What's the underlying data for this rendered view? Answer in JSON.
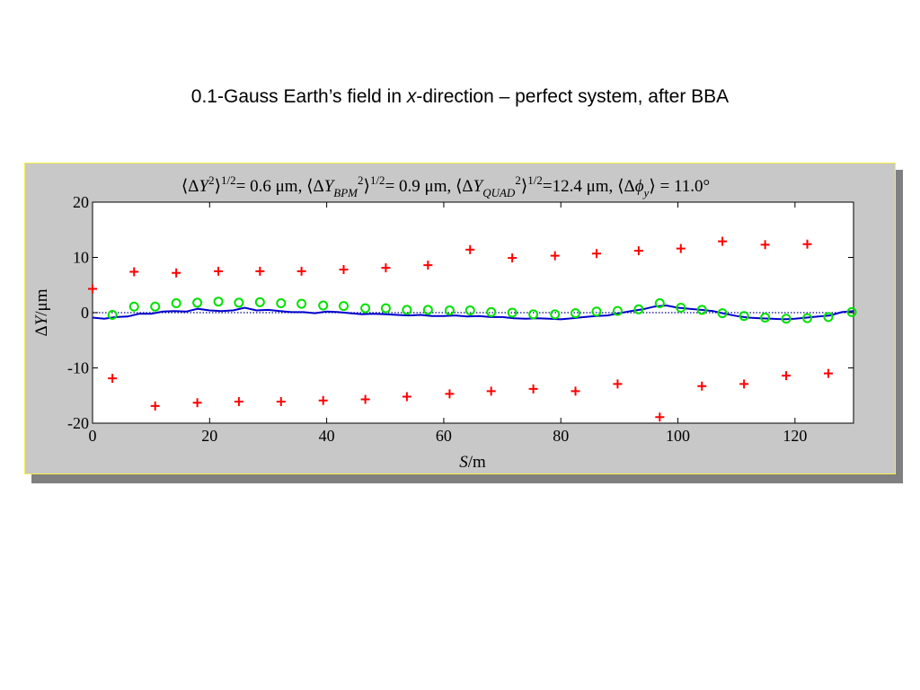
{
  "slide": {
    "title_before": "0.1-Gauss Earth’s field in ",
    "title_var": "x",
    "title_after": "-direction – perfect system, after BBA"
  },
  "colors": {
    "plus": "#ff0000",
    "circle": "#00e000",
    "line": "#0000cc",
    "zero_line": "#000088",
    "panel": "#c8c8c8",
    "border": "#f5f046"
  },
  "chart_data": {
    "type": "scatter",
    "title_parts": {
      "y_rms": "= 0.6 μm, ",
      "ybpm_rms": "= 0.9 μm, ",
      "yquad_rms": "=12.4 μm, ",
      "phi": " =   11.0°"
    },
    "xlabel": "S/m",
    "ylabel": "ΔY/μm",
    "xlim": [
      0,
      130
    ],
    "ylim": [
      -20,
      20
    ],
    "x_ticks": [
      0,
      20,
      40,
      60,
      80,
      100,
      120
    ],
    "y_ticks": [
      -20,
      -10,
      0,
      10,
      20
    ],
    "x_tick_labels": [
      "0",
      "20",
      "40",
      "60",
      "80",
      "100",
      "120"
    ],
    "y_tick_labels": [
      "-20",
      "-10",
      "0",
      "10",
      "20"
    ],
    "zero_line": true,
    "series": [
      {
        "marker": "plus",
        "x": [
          0,
          3.4,
          7.1,
          10.7,
          14.3,
          17.9,
          21.5,
          25.0,
          28.6,
          32.2,
          35.7,
          39.4,
          42.9,
          46.6,
          50.1,
          53.7,
          57.3,
          61.0,
          64.5,
          68.1,
          71.7,
          75.3,
          79.0,
          82.5,
          86.1,
          89.7,
          93.3,
          96.9,
          100.5,
          104.1,
          107.6,
          111.3,
          114.9,
          118.5,
          122.1,
          125.7
        ],
        "y": [
          4.3,
          -11.9,
          7.4,
          -16.9,
          7.2,
          -16.3,
          7.5,
          -16.1,
          7.5,
          -16.1,
          7.5,
          -15.9,
          7.8,
          -15.7,
          8.1,
          -15.2,
          8.6,
          -14.7,
          11.4,
          -14.2,
          9.9,
          -13.8,
          10.3,
          -14.2,
          10.7,
          -12.9,
          11.2,
          -18.9,
          11.6,
          -13.3,
          12.9,
          -12.9,
          12.3,
          -11.4,
          12.4,
          -11.0
        ]
      },
      {
        "marker": "circle",
        "x": [
          3.4,
          7.1,
          10.7,
          14.3,
          17.9,
          21.5,
          25.0,
          28.6,
          32.2,
          35.7,
          39.4,
          42.9,
          46.6,
          50.1,
          53.7,
          57.3,
          61.0,
          64.5,
          68.1,
          71.7,
          75.3,
          79.0,
          82.5,
          86.1,
          89.7,
          93.3,
          96.9,
          100.5,
          104.1,
          107.6,
          111.3,
          114.9,
          118.5,
          122.1,
          125.7,
          129.7
        ],
        "y": [
          -0.4,
          1.1,
          1.1,
          1.7,
          1.8,
          2.0,
          1.8,
          1.9,
          1.7,
          1.6,
          1.3,
          1.2,
          0.8,
          0.8,
          0.5,
          0.5,
          0.4,
          0.4,
          0.1,
          0.0,
          -0.3,
          -0.3,
          -0.1,
          0.2,
          0.3,
          0.6,
          1.7,
          0.9,
          0.5,
          -0.1,
          -0.6,
          -0.9,
          -1.1,
          -1.0,
          -0.8,
          0.1
        ]
      },
      {
        "marker": "line",
        "x": [
          0,
          2,
          4,
          6,
          8,
          10,
          12,
          14,
          16,
          18,
          20,
          22,
          24,
          26,
          28,
          30,
          32,
          34,
          36,
          38,
          40,
          42,
          44,
          46,
          48,
          50,
          52,
          54,
          56,
          58,
          60,
          62,
          64,
          66,
          68,
          70,
          72,
          74,
          76,
          78,
          80,
          82,
          84,
          86,
          88,
          90,
          92,
          94,
          96,
          98,
          100,
          102,
          104,
          106,
          108,
          110,
          112,
          114,
          116,
          118,
          120,
          122,
          124,
          126,
          128,
          130
        ],
        "y": [
          -0.9,
          -1.1,
          -0.8,
          -0.7,
          -0.2,
          -0.2,
          0.2,
          0.3,
          0.2,
          0.7,
          0.4,
          0.3,
          0.4,
          0.9,
          0.4,
          0.5,
          0.3,
          0.1,
          0.1,
          -0.1,
          0.2,
          0.1,
          -0.1,
          -0.3,
          -0.2,
          -0.3,
          -0.4,
          -0.5,
          -0.4,
          -0.6,
          -0.6,
          -0.5,
          -0.7,
          -0.6,
          -0.8,
          -0.8,
          -1.0,
          -1.1,
          -1.0,
          -1.1,
          -1.2,
          -1.0,
          -0.8,
          -0.6,
          -0.5,
          -0.1,
          0.3,
          0.6,
          1.1,
          1.3,
          0.9,
          0.7,
          0.5,
          0.3,
          -0.2,
          -0.6,
          -0.9,
          -1.0,
          -1.1,
          -1.2,
          -1.1,
          -0.9,
          -0.7,
          -0.5,
          0.1,
          0.3
        ]
      }
    ]
  }
}
